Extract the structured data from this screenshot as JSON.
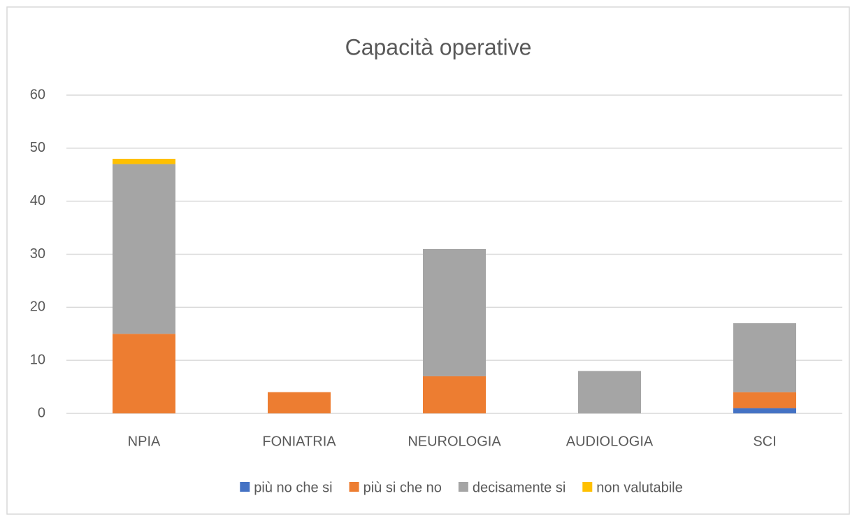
{
  "chart_data": {
    "type": "stacked_bar",
    "title": "Capacità operative",
    "categories": [
      "NPIA",
      "FONIATRIA",
      "NEUROLOGIA",
      "AUDIOLOGIA",
      "SCI"
    ],
    "series": [
      {
        "name": "più no che si",
        "color": "#4472c4",
        "values": [
          0,
          0,
          0,
          0,
          1
        ]
      },
      {
        "name": "più si che no",
        "color": "#ed7d31",
        "values": [
          15,
          4,
          7,
          0,
          3
        ]
      },
      {
        "name": "decisamente si",
        "color": "#a5a5a5",
        "values": [
          32,
          0,
          24,
          8,
          13
        ]
      },
      {
        "name": "non valutabile",
        "color": "#ffc000",
        "values": [
          1,
          0,
          0,
          0,
          0
        ]
      }
    ],
    "ylim": [
      0,
      60
    ],
    "yticks": [
      0,
      10,
      20,
      30,
      40,
      50,
      60
    ],
    "grid": true,
    "legend": "bottom"
  }
}
